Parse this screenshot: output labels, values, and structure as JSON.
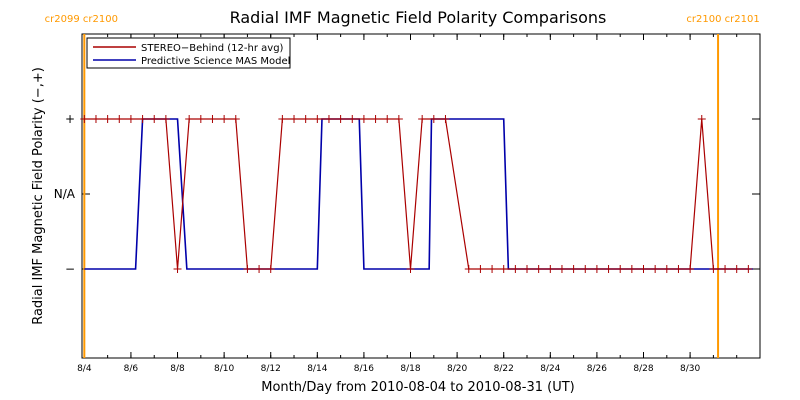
{
  "chart_data": {
    "type": "line",
    "title": "Radial IMF Magnetic Field Polarity Comparisons",
    "xlabel": "Month/Day from 2010-08-04 to 2010-08-31 (UT)",
    "ylabel": "Radial IMF Magnetic Field Polarity (−,+)",
    "x_ticks": [
      "8/4",
      "8/6",
      "8/8",
      "8/10",
      "8/12",
      "8/14",
      "8/16",
      "8/18",
      "8/20",
      "8/22",
      "8/24",
      "8/26",
      "8/28",
      "8/30"
    ],
    "y_ticks": [
      "+",
      "N/A",
      "−"
    ],
    "carrington_markers": [
      {
        "label": "cr2099 cr2100",
        "day": 4.0
      },
      {
        "label": "cr2100 cr2101",
        "day": 31.2
      }
    ],
    "series": [
      {
        "name": "STEREO−Behind (12-hr avg)",
        "color": "#aa0000",
        "points": [
          [
            4.0,
            1
          ],
          [
            4.5,
            1
          ],
          [
            5.0,
            1
          ],
          [
            5.5,
            1
          ],
          [
            6.0,
            1
          ],
          [
            6.5,
            1
          ],
          [
            7.0,
            1
          ],
          [
            7.5,
            1
          ],
          [
            8.0,
            -1
          ],
          [
            8.5,
            1
          ],
          [
            9.0,
            1
          ],
          [
            9.5,
            1
          ],
          [
            10.0,
            1
          ],
          [
            10.5,
            1
          ],
          [
            11.0,
            -1
          ],
          [
            11.5,
            -1
          ],
          [
            12.0,
            -1
          ],
          [
            12.5,
            1
          ],
          [
            13.0,
            1
          ],
          [
            13.5,
            1
          ],
          [
            14.0,
            1
          ],
          [
            14.5,
            1
          ],
          [
            15.0,
            1
          ],
          [
            15.5,
            1
          ],
          [
            16.0,
            1
          ],
          [
            16.5,
            1
          ],
          [
            17.0,
            1
          ],
          [
            17.5,
            1
          ],
          [
            18.0,
            -1
          ],
          [
            18.5,
            1
          ],
          [
            19.0,
            1
          ],
          [
            19.5,
            1
          ],
          [
            20.5,
            -1
          ],
          [
            21.0,
            -1
          ],
          [
            21.5,
            -1
          ],
          [
            22.0,
            -1
          ],
          [
            22.5,
            -1
          ],
          [
            23.0,
            -1
          ],
          [
            23.5,
            -1
          ],
          [
            24.0,
            -1
          ],
          [
            24.5,
            -1
          ],
          [
            25.0,
            -1
          ],
          [
            25.5,
            -1
          ],
          [
            26.0,
            -1
          ],
          [
            26.5,
            -1
          ],
          [
            27.0,
            -1
          ],
          [
            27.5,
            -1
          ],
          [
            28.0,
            -1
          ],
          [
            28.5,
            -1
          ],
          [
            29.0,
            -1
          ],
          [
            29.5,
            -1
          ],
          [
            30.0,
            -1
          ],
          [
            30.5,
            1
          ],
          [
            31.0,
            -1
          ],
          [
            31.5,
            -1
          ],
          [
            32.0,
            -1
          ],
          [
            32.5,
            -1
          ]
        ]
      },
      {
        "name": "Predictive Science MAS Model",
        "color": "#0000aa",
        "points": [
          [
            4.0,
            -1
          ],
          [
            6.2,
            -1
          ],
          [
            6.5,
            1
          ],
          [
            8.0,
            1
          ],
          [
            8.4,
            -1
          ],
          [
            14.0,
            -1
          ],
          [
            14.2,
            1
          ],
          [
            15.8,
            1
          ],
          [
            16.0,
            -1
          ],
          [
            18.8,
            -1
          ],
          [
            18.9,
            1
          ],
          [
            22.0,
            1
          ],
          [
            22.2,
            -1
          ],
          [
            32.7,
            -1
          ]
        ]
      }
    ],
    "xlim": [
      3.9,
      33.0
    ],
    "ylim": [
      -2,
      2
    ],
    "legend_position": "top-left",
    "grid": false
  }
}
